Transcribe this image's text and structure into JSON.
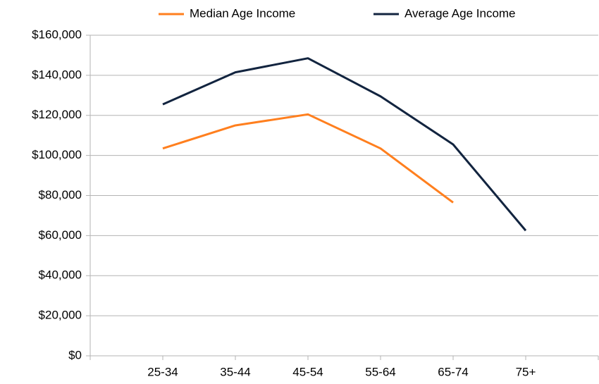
{
  "chart_data": {
    "type": "line",
    "categories": [
      "25-34",
      "35-44",
      "45-54",
      "55-64",
      "65-74",
      "75+"
    ],
    "series": [
      {
        "name": "Median Age Income",
        "color": "#ff7f1e",
        "values": [
          103500,
          115000,
          120500,
          103500,
          76500,
          null
        ]
      },
      {
        "name": "Average Age Income",
        "color": "#12243f",
        "values": [
          125500,
          141500,
          148500,
          129500,
          105500,
          62500
        ]
      }
    ],
    "ylim": [
      0,
      160000
    ],
    "yticks": [
      {
        "value": 0,
        "label": "$0"
      },
      {
        "value": 20000,
        "label": "$20,000"
      },
      {
        "value": 40000,
        "label": "$40,000"
      },
      {
        "value": 60000,
        "label": "$60,000"
      },
      {
        "value": 80000,
        "label": "$80,000"
      },
      {
        "value": 100000,
        "label": "$100,000"
      },
      {
        "value": 120000,
        "label": "$120,000"
      },
      {
        "value": 140000,
        "label": "$140,000"
      },
      {
        "value": 160000,
        "label": "$160,000"
      }
    ],
    "grid": true,
    "legend": "top"
  }
}
